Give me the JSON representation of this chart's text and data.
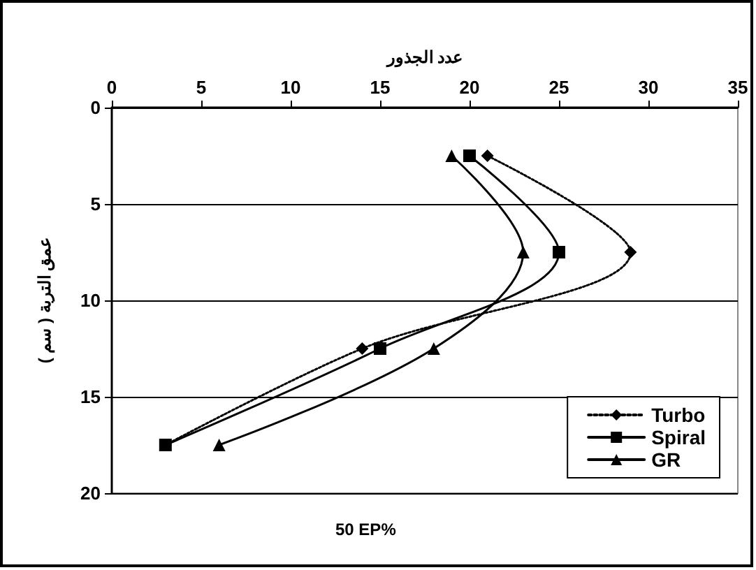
{
  "chart_data": {
    "type": "line",
    "xlabel": "عدد الجذور",
    "ylabel": "عمق التربة ( سم )",
    "annotations": [
      "50 EP%"
    ],
    "xlim": [
      0,
      35
    ],
    "xticks": [
      0,
      5,
      10,
      15,
      20,
      25,
      30,
      35
    ],
    "ylim": [
      20,
      0
    ],
    "yticks": [
      0,
      5,
      10,
      15,
      20
    ],
    "grid": "y",
    "legend": "bottom right",
    "series": [
      {
        "name": "Turbo",
        "color": "#000000",
        "marker": "diamond",
        "line_style": "dotted",
        "x": [
          21,
          29,
          14,
          3
        ],
        "values": [
          2.5,
          7.5,
          12.5,
          17.5
        ]
      },
      {
        "name": "Spiral",
        "color": "#000000",
        "marker": "square",
        "line_style": "solid",
        "x": [
          20,
          25,
          15,
          3
        ],
        "values": [
          2.5,
          7.5,
          12.5,
          17.5
        ]
      },
      {
        "name": "GR",
        "color": "#000000",
        "marker": "triangle",
        "line_style": "solid",
        "x": [
          19,
          23,
          18,
          6
        ],
        "values": [
          2.5,
          7.5,
          12.5,
          17.5
        ]
      }
    ]
  }
}
